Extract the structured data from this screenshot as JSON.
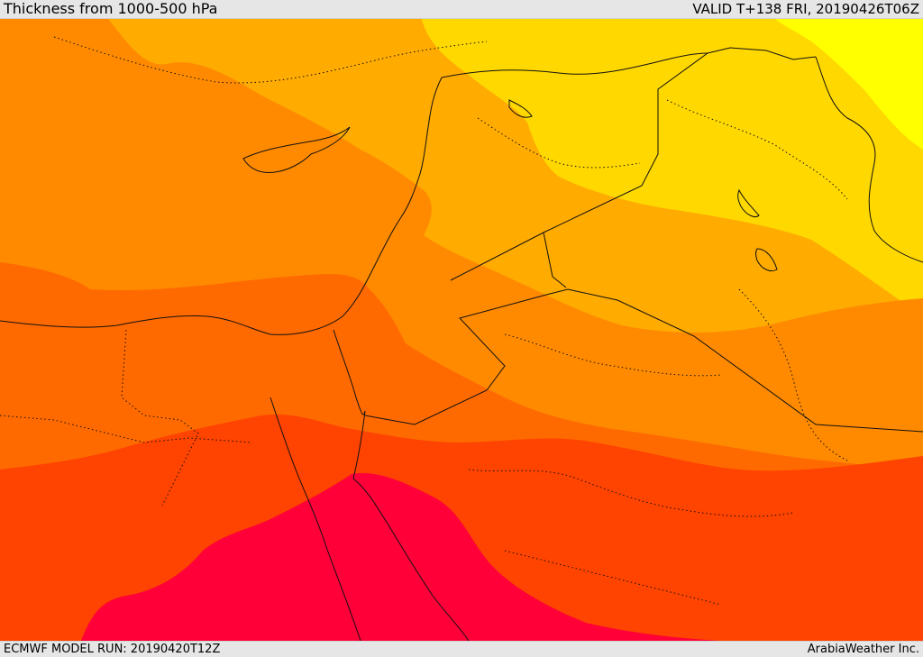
{
  "header": {
    "title": "Thickness from 1000-500 hPa",
    "valid_time": "VALID T+138 FRI, 20190426T06Z"
  },
  "footer": {
    "model_run": "ECMWF MODEL RUN: 20190420T12Z",
    "credit": "ArabiaWeather Inc."
  },
  "map": {
    "bands": [
      {
        "name": "band-yellow",
        "color": "#ffff00"
      },
      {
        "name": "band-yellow-orange",
        "color": "#ffd800"
      },
      {
        "name": "band-light-orange",
        "color": "#ffab00"
      },
      {
        "name": "band-orange",
        "color": "#ff8a00"
      },
      {
        "name": "band-dark-orange",
        "color": "#ff6a00"
      },
      {
        "name": "band-red-orange",
        "color": "#ff4300"
      },
      {
        "name": "band-crimson",
        "color": "#ff0038"
      }
    ],
    "line_color": "#111111"
  }
}
